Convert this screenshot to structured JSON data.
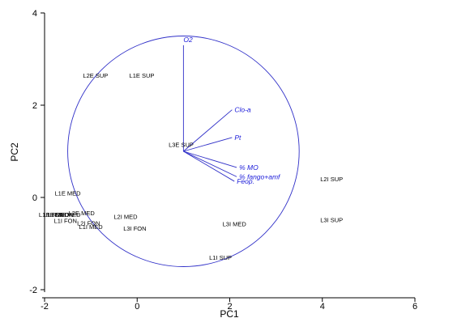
{
  "chart_data": {
    "type": "scatter",
    "subtype": "pca-biplot",
    "title": "",
    "xlabel": "PC1",
    "ylabel": "PC2",
    "xlim": [
      -2,
      6
    ],
    "ylim": [
      -2,
      4
    ],
    "xticks": [
      -2,
      0,
      2,
      4,
      6
    ],
    "yticks": [
      -2,
      0,
      2,
      4
    ],
    "grid": false,
    "colors": {
      "points": "#000000",
      "vectors": "#3030c8",
      "vector_labels": "#1a1ad9",
      "axes": "#000000"
    },
    "correlation_circle": {
      "center": [
        1.0,
        1.0
      ],
      "radius": 2.5
    },
    "vectors": [
      {
        "label": "O2",
        "x": 1.0,
        "y": 3.3
      },
      {
        "label": "Clo-a",
        "x": 2.05,
        "y": 1.9
      },
      {
        "label": "Pt",
        "x": 2.05,
        "y": 1.3
      },
      {
        "label": "% MO",
        "x": 2.15,
        "y": 0.65
      },
      {
        "label": "% fango+amf",
        "x": 2.15,
        "y": 0.45
      },
      {
        "label": "Feop.",
        "x": 2.1,
        "y": 0.35
      }
    ],
    "points": [
      {
        "label": "L2E SUP",
        "x": -0.9,
        "y": 2.65
      },
      {
        "label": "L1E SUP",
        "x": 0.1,
        "y": 2.65
      },
      {
        "label": "L3E SUP",
        "x": 0.95,
        "y": 1.15
      },
      {
        "label": "L1E MED",
        "x": -1.5,
        "y": 0.1
      },
      {
        "label": "L1E FON",
        "x": -1.85,
        "y": -0.37
      },
      {
        "label": "L1E MED",
        "x": -1.75,
        "y": -0.37
      },
      {
        "label": "L3E FON",
        "x": -1.65,
        "y": -0.37
      },
      {
        "label": "L3E MED",
        "x": -1.5,
        "y": -0.37
      },
      {
        "label": "L2E MED",
        "x": -1.2,
        "y": -0.33
      },
      {
        "label": "L1I FON",
        "x": -1.55,
        "y": -0.5
      },
      {
        "label": "L2I FON",
        "x": -1.05,
        "y": -0.55
      },
      {
        "label": "L1I MED",
        "x": -1.0,
        "y": -0.63
      },
      {
        "label": "L2I MED",
        "x": -0.25,
        "y": -0.41
      },
      {
        "label": "L3I FON",
        "x": -0.05,
        "y": -0.67
      },
      {
        "label": "L3I MED",
        "x": 2.1,
        "y": -0.57
      },
      {
        "label": "L1I SUP",
        "x": 1.8,
        "y": -1.3
      },
      {
        "label": "L2I SUP",
        "x": 4.2,
        "y": 0.4
      },
      {
        "label": "L3I SUP",
        "x": 4.2,
        "y": -0.48
      }
    ]
  }
}
